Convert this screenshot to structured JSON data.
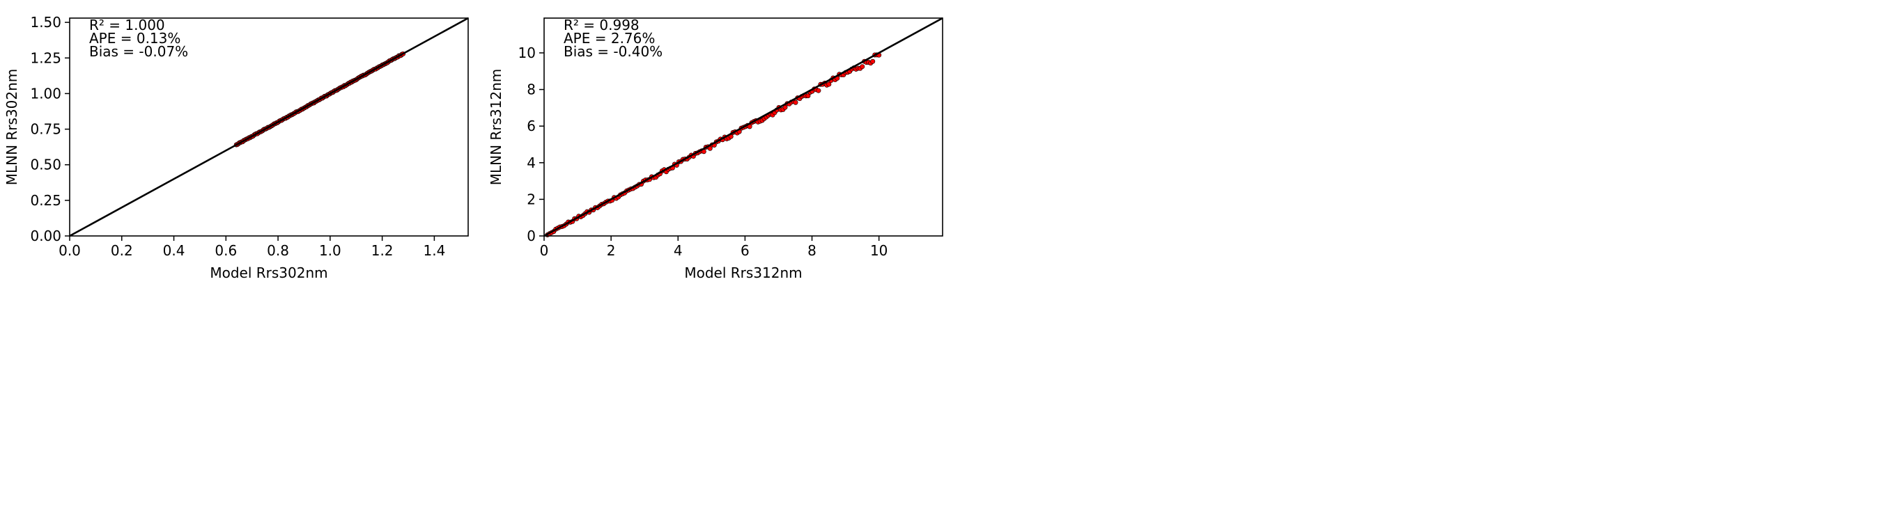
{
  "chart_data": [
    {
      "type": "scatter",
      "xlabel": "Model Rrs302nm",
      "ylabel": "MLNN Rrs302nm",
      "xlim": [
        0.0,
        1.53
      ],
      "ylim": [
        0.0,
        1.53
      ],
      "xticks": [
        "0.0",
        "0.2",
        "0.4",
        "0.6",
        "0.8",
        "1.0",
        "1.2",
        "1.4"
      ],
      "yticks": [
        "0.00",
        "0.25",
        "0.50",
        "0.75",
        "1.00",
        "1.25",
        "1.50"
      ],
      "stats": [
        "R² = 1.000",
        "APE = 0.13%",
        "Bias = -0.07%"
      ],
      "one_to_one_line": true,
      "point_colors": {
        "outline": "#000000",
        "fill": "#ff0000"
      },
      "points_range": {
        "x_min": 0.64,
        "x_max": 1.28,
        "slope": 0.9993,
        "spread": 0.003
      }
    },
    {
      "type": "scatter",
      "xlabel": "Model Rrs312nm",
      "ylabel": "MLNN Rrs312nm",
      "xlim": [
        0.0,
        11.9
      ],
      "ylim": [
        0.0,
        11.9
      ],
      "xticks": [
        "0",
        "2",
        "4",
        "6",
        "8",
        "10"
      ],
      "yticks": [
        "0",
        "2",
        "4",
        "6",
        "8",
        "10"
      ],
      "stats": [
        "R² = 0.998",
        "APE = 2.76%",
        "Bias = -0.40%"
      ],
      "one_to_one_line": true,
      "point_colors": {
        "outline": "#000000",
        "fill": "#ff0000"
      },
      "points_range": {
        "x_min": 0.1,
        "x_max": 10.0,
        "slope": 0.985,
        "spread": 0.12
      }
    }
  ]
}
